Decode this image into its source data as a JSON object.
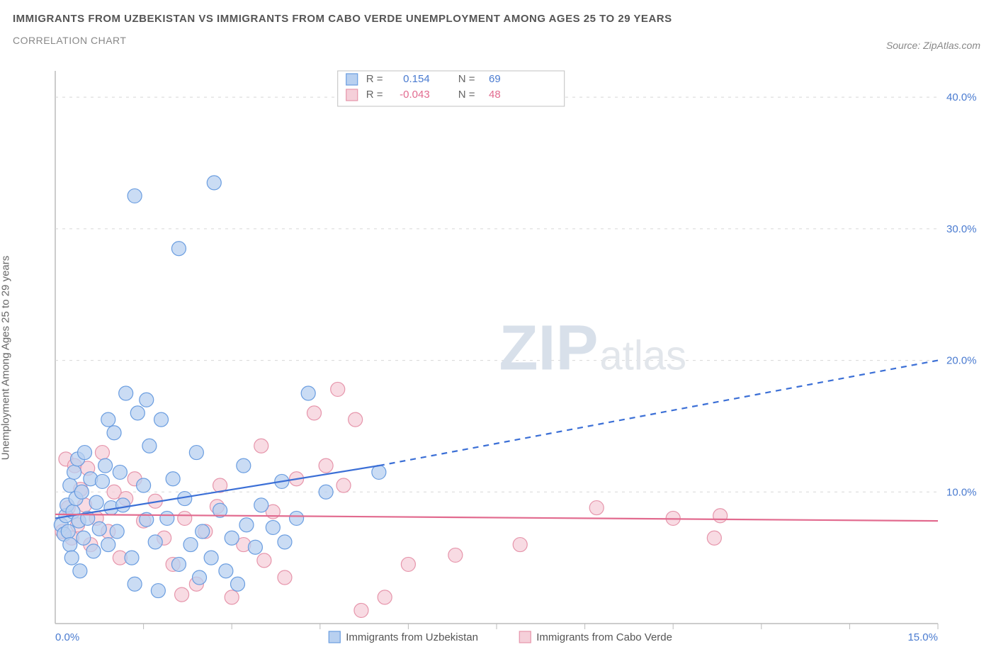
{
  "title": "IMMIGRANTS FROM UZBEKISTAN VS IMMIGRANTS FROM CABO VERDE UNEMPLOYMENT AMONG AGES 25 TO 29 YEARS",
  "subtitle": "CORRELATION CHART",
  "source": "Source: ZipAtlas.com",
  "ylabel": "Unemployment Among Ages 25 to 29 years",
  "watermark_main": "ZIP",
  "watermark_sub": "atlas",
  "chart": {
    "type": "scatter",
    "background_color": "#ffffff",
    "plot_border_color": "#bbbbbb",
    "grid_color": "#d8d8d8",
    "xlim": [
      0,
      15
    ],
    "ylim": [
      0,
      42
    ],
    "xticks": [
      0,
      3,
      6,
      9,
      12,
      15
    ],
    "xtick_labels": [
      "0.0%",
      "",
      "",
      "",
      "",
      "15.0%"
    ],
    "yticks_right": [
      10,
      20,
      30,
      40
    ],
    "ytick_labels": [
      "10.0%",
      "20.0%",
      "30.0%",
      "40.0%"
    ],
    "ytick_label_color": "#4a7bd0",
    "xtick_label_color": "#4a7bd0",
    "x_intermediate_ticks": [
      1.5,
      3,
      4.5,
      6,
      7.5,
      9,
      10.5,
      12,
      13.5,
      15
    ],
    "series": [
      {
        "name": "Immigrants from Uzbekistan",
        "r": "0.154",
        "n": "69",
        "marker_fill": "#b8d0f0",
        "marker_stroke": "#6a9de0",
        "marker_opacity": 0.75,
        "marker_radius": 10,
        "line_color": "#3b6fd6",
        "line_width": 2.2,
        "trend_solid": {
          "x1": 0,
          "y1": 8.0,
          "x2": 5.5,
          "y2": 12.0
        },
        "trend_dash": {
          "x1": 5.5,
          "y1": 12.0,
          "x2": 15.0,
          "y2": 20.0
        },
        "points": [
          [
            0.1,
            7.5
          ],
          [
            0.15,
            6.8
          ],
          [
            0.18,
            8.2
          ],
          [
            0.2,
            9.0
          ],
          [
            0.22,
            7.0
          ],
          [
            0.25,
            10.5
          ],
          [
            0.25,
            6.0
          ],
          [
            0.28,
            5.0
          ],
          [
            0.3,
            8.5
          ],
          [
            0.32,
            11.5
          ],
          [
            0.35,
            9.5
          ],
          [
            0.38,
            12.5
          ],
          [
            0.4,
            7.8
          ],
          [
            0.42,
            4.0
          ],
          [
            0.45,
            10.0
          ],
          [
            0.48,
            6.5
          ],
          [
            0.5,
            13.0
          ],
          [
            0.55,
            8.0
          ],
          [
            0.6,
            11.0
          ],
          [
            0.65,
            5.5
          ],
          [
            0.7,
            9.2
          ],
          [
            0.75,
            7.2
          ],
          [
            0.8,
            10.8
          ],
          [
            0.85,
            12.0
          ],
          [
            0.9,
            6.0
          ],
          [
            0.95,
            8.8
          ],
          [
            1.0,
            14.5
          ],
          [
            1.05,
            7.0
          ],
          [
            1.1,
            11.5
          ],
          [
            1.15,
            9.0
          ],
          [
            1.2,
            17.5
          ],
          [
            1.3,
            5.0
          ],
          [
            1.35,
            3.0
          ],
          [
            1.4,
            16.0
          ],
          [
            1.5,
            10.5
          ],
          [
            1.55,
            7.9
          ],
          [
            1.6,
            13.5
          ],
          [
            1.7,
            6.2
          ],
          [
            1.75,
            2.5
          ],
          [
            1.8,
            15.5
          ],
          [
            1.9,
            8.0
          ],
          [
            2.0,
            11.0
          ],
          [
            2.1,
            4.5
          ],
          [
            2.2,
            9.5
          ],
          [
            2.3,
            6.0
          ],
          [
            2.45,
            3.5
          ],
          [
            2.5,
            7.0
          ],
          [
            2.65,
            5.0
          ],
          [
            2.8,
            8.6
          ],
          [
            2.9,
            4.0
          ],
          [
            3.0,
            6.5
          ],
          [
            3.1,
            3.0
          ],
          [
            3.25,
            7.5
          ],
          [
            3.4,
            5.8
          ],
          [
            3.5,
            9.0
          ],
          [
            3.7,
            7.3
          ],
          [
            3.9,
            6.2
          ],
          [
            4.1,
            8.0
          ],
          [
            1.35,
            32.5
          ],
          [
            2.7,
            33.5
          ],
          [
            2.1,
            28.5
          ],
          [
            4.3,
            17.5
          ],
          [
            1.55,
            17.0
          ],
          [
            0.9,
            15.5
          ],
          [
            2.4,
            13.0
          ],
          [
            3.2,
            12.0
          ],
          [
            5.5,
            11.5
          ],
          [
            4.6,
            10.0
          ],
          [
            3.85,
            10.8
          ]
        ]
      },
      {
        "name": "Immigrants from Cabo Verde",
        "r": "-0.043",
        "n": "48",
        "marker_fill": "#f5cfd9",
        "marker_stroke": "#e695ab",
        "marker_opacity": 0.75,
        "marker_radius": 10,
        "line_color": "#e26b8f",
        "line_width": 2.2,
        "trend_solid": {
          "x1": 0,
          "y1": 8.3,
          "x2": 15.0,
          "y2": 7.8
        },
        "trend_dash": null,
        "points": [
          [
            0.12,
            7.0
          ],
          [
            0.18,
            12.5
          ],
          [
            0.22,
            8.8
          ],
          [
            0.28,
            6.5
          ],
          [
            0.33,
            12.0
          ],
          [
            0.38,
            7.5
          ],
          [
            0.43,
            10.2
          ],
          [
            0.5,
            9.0
          ],
          [
            0.55,
            11.8
          ],
          [
            0.6,
            6.0
          ],
          [
            0.7,
            8.0
          ],
          [
            0.8,
            13.0
          ],
          [
            0.9,
            7.0
          ],
          [
            1.0,
            10.0
          ],
          [
            1.1,
            5.0
          ],
          [
            1.2,
            9.5
          ],
          [
            1.35,
            11.0
          ],
          [
            1.5,
            7.8
          ],
          [
            1.7,
            9.3
          ],
          [
            1.85,
            6.5
          ],
          [
            2.0,
            4.5
          ],
          [
            2.2,
            8.0
          ],
          [
            2.4,
            3.0
          ],
          [
            2.55,
            7.0
          ],
          [
            2.8,
            10.5
          ],
          [
            3.0,
            2.0
          ],
          [
            3.2,
            6.0
          ],
          [
            3.5,
            13.5
          ],
          [
            3.7,
            8.5
          ],
          [
            3.9,
            3.5
          ],
          [
            4.1,
            11.0
          ],
          [
            4.4,
            16.0
          ],
          [
            4.8,
            17.8
          ],
          [
            4.6,
            12.0
          ],
          [
            5.1,
            15.5
          ],
          [
            4.9,
            10.5
          ],
          [
            5.2,
            1.0
          ],
          [
            2.15,
            2.2
          ],
          [
            2.75,
            8.9
          ],
          [
            3.55,
            4.8
          ],
          [
            6.0,
            4.5
          ],
          [
            6.8,
            5.2
          ],
          [
            5.6,
            2.0
          ],
          [
            7.9,
            6.0
          ],
          [
            9.2,
            8.8
          ],
          [
            10.5,
            8.0
          ],
          [
            11.3,
            8.2
          ],
          [
            11.2,
            6.5
          ]
        ]
      }
    ],
    "top_legend": {
      "box_stroke": "#c0c0c0",
      "r_label": "R =",
      "n_label": "N =",
      "value_colors": [
        "#4a7bd0",
        "#e26b8f"
      ]
    },
    "bottom_legend_labels": [
      "Immigrants from Uzbekistan",
      "Immigrants from Cabo Verde"
    ]
  }
}
